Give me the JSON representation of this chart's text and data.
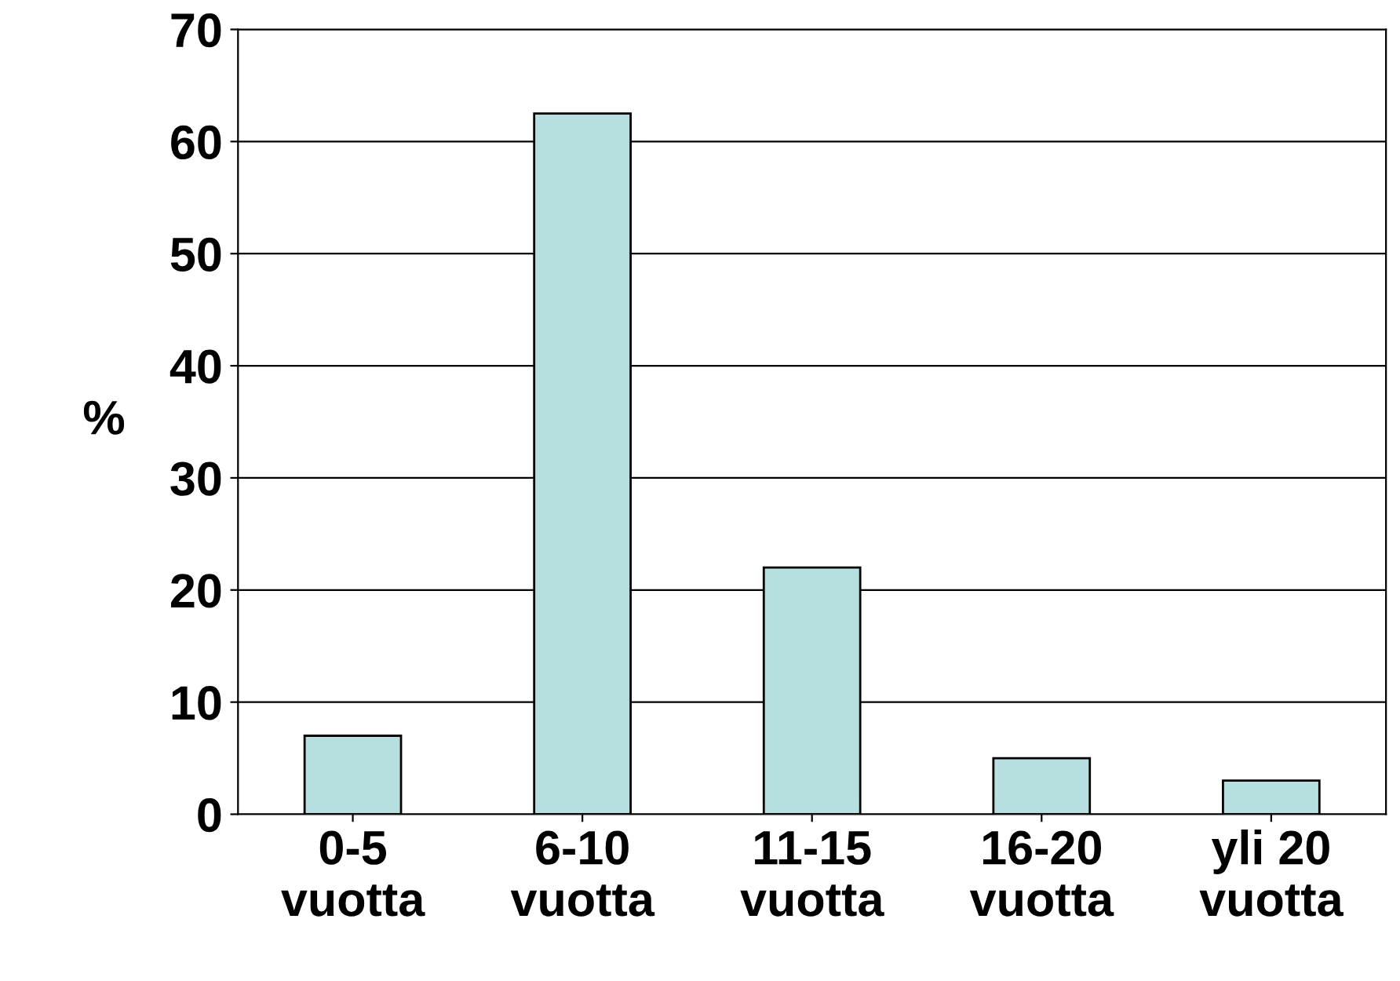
{
  "chart_data": {
    "type": "bar",
    "ylabel": "%",
    "categories": [
      "0-5\nvuotta",
      "6-10\nvuotta",
      "11-15\nvuotta",
      "16-20\nvuotta",
      "yli 20\nvuotta"
    ],
    "values": [
      7,
      62.5,
      22,
      5,
      3
    ],
    "color": "#b8dfe0",
    "ylim": [
      0,
      70
    ],
    "yticks": [
      0,
      10,
      20,
      30,
      40,
      50,
      60,
      70
    ],
    "grid": "y"
  }
}
